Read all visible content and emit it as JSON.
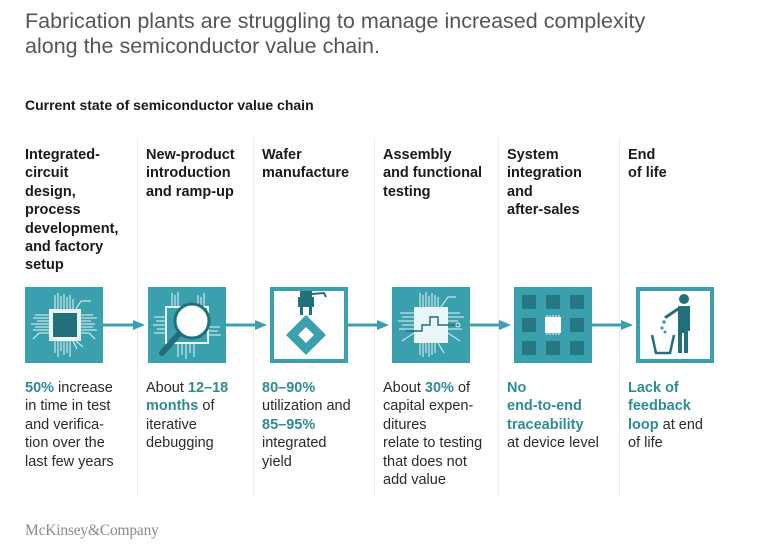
{
  "title": "Fabrication plants are struggling to manage increased complexity along the semiconductor value chain.",
  "subtitle": "Current state of semiconductor value chain",
  "colors": {
    "accent": "#2f8d92",
    "icon_fill": "#3aa0ad",
    "icon_dark": "#22707a",
    "text": "#1a1a1a"
  },
  "stages": [
    {
      "title": "Integrated-circuit design, process development, and factory setup",
      "title_lines": [
        "Integrated-",
        "circuit",
        "design,",
        "process",
        "development,",
        "and factory",
        "setup"
      ],
      "icon": "chip-icon",
      "desc_segments": [
        {
          "text": "50%",
          "highlight": true
        },
        {
          "text": " increase in time in test and verifica- tion over the last few years",
          "highlight": false
        }
      ]
    },
    {
      "title": "New-product introduction and ramp-up",
      "title_lines": [
        "New-product",
        "introduction",
        "and ramp-up"
      ],
      "icon": "magnifier-chip-icon",
      "desc_segments": [
        {
          "text": "About ",
          "highlight": false
        },
        {
          "text": "12–18 months",
          "highlight": true
        },
        {
          "text": " of iterative debugging",
          "highlight": false
        }
      ]
    },
    {
      "title": "Wafer manufacture",
      "title_lines": [
        "Wafer",
        "manufacture"
      ],
      "icon": "robot-arm-wafer-icon",
      "desc_segments": [
        {
          "text": "80–90%",
          "highlight": true
        },
        {
          "text": " utilization and ",
          "highlight": false
        },
        {
          "text": "85–95%",
          "highlight": true
        },
        {
          "text": " integrated yield",
          "highlight": false
        }
      ]
    },
    {
      "title": "Assembly and functional testing",
      "title_lines": [
        "Assembly",
        "and functional",
        "testing"
      ],
      "icon": "circuit-test-icon",
      "desc_segments": [
        {
          "text": "About ",
          "highlight": false
        },
        {
          "text": "30%",
          "highlight": true
        },
        {
          "text": " of capital expen- ditures relate to testing that does not add value",
          "highlight": false
        }
      ]
    },
    {
      "title": "System integration and after-sales",
      "title_lines": [
        "System",
        "integration",
        "and",
        "after-sales"
      ],
      "icon": "chip-grid-icon",
      "desc_segments": [
        {
          "text": "No end-to-end traceability",
          "highlight": true
        },
        {
          "text": " at device level",
          "highlight": false
        }
      ]
    },
    {
      "title": "End of life",
      "title_lines": [
        "End",
        "of life"
      ],
      "icon": "trash-person-icon",
      "desc_segments": [
        {
          "text": "Lack of feedback loop",
          "highlight": true
        },
        {
          "text": " at end of life",
          "highlight": false
        }
      ]
    }
  ],
  "desc_lines": [
    [
      [
        [
          "50%",
          1
        ],
        [
          " increase",
          0
        ]
      ],
      [
        [
          "in time in test",
          0
        ]
      ],
      [
        [
          "and verifica-",
          0
        ]
      ],
      [
        [
          "tion over the",
          0
        ]
      ],
      [
        [
          "last few years",
          0
        ]
      ]
    ],
    [
      [
        [
          "About ",
          0
        ],
        [
          "12–18",
          1
        ]
      ],
      [
        [
          "months",
          1
        ],
        [
          " of",
          0
        ]
      ],
      [
        [
          "iterative",
          0
        ]
      ],
      [
        [
          "debugging",
          0
        ]
      ]
    ],
    [
      [
        [
          "80–90%",
          1
        ]
      ],
      [
        [
          "utilization and",
          0
        ]
      ],
      [
        [
          "85–95%",
          1
        ]
      ],
      [
        [
          "integrated",
          0
        ]
      ],
      [
        [
          "yield",
          0
        ]
      ]
    ],
    [
      [
        [
          "About ",
          0
        ],
        [
          "30%",
          1
        ],
        [
          " of",
          0
        ]
      ],
      [
        [
          "capital expen-",
          0
        ]
      ],
      [
        [
          "ditures",
          0
        ]
      ],
      [
        [
          "relate to testing",
          0
        ]
      ],
      [
        [
          "that does not",
          0
        ]
      ],
      [
        [
          "add value",
          0
        ]
      ]
    ],
    [
      [
        [
          "No",
          1
        ]
      ],
      [
        [
          "end-to-end",
          1
        ]
      ],
      [
        [
          "traceability",
          1
        ]
      ],
      [
        [
          "at device level",
          0
        ]
      ]
    ],
    [
      [
        [
          "Lack of",
          1
        ]
      ],
      [
        [
          "feedback",
          1
        ]
      ],
      [
        [
          "loop",
          1
        ],
        [
          " at end",
          0
        ]
      ],
      [
        [
          "of life",
          0
        ]
      ]
    ]
  ],
  "footer": {
    "logo": "McKinsey&Company"
  }
}
